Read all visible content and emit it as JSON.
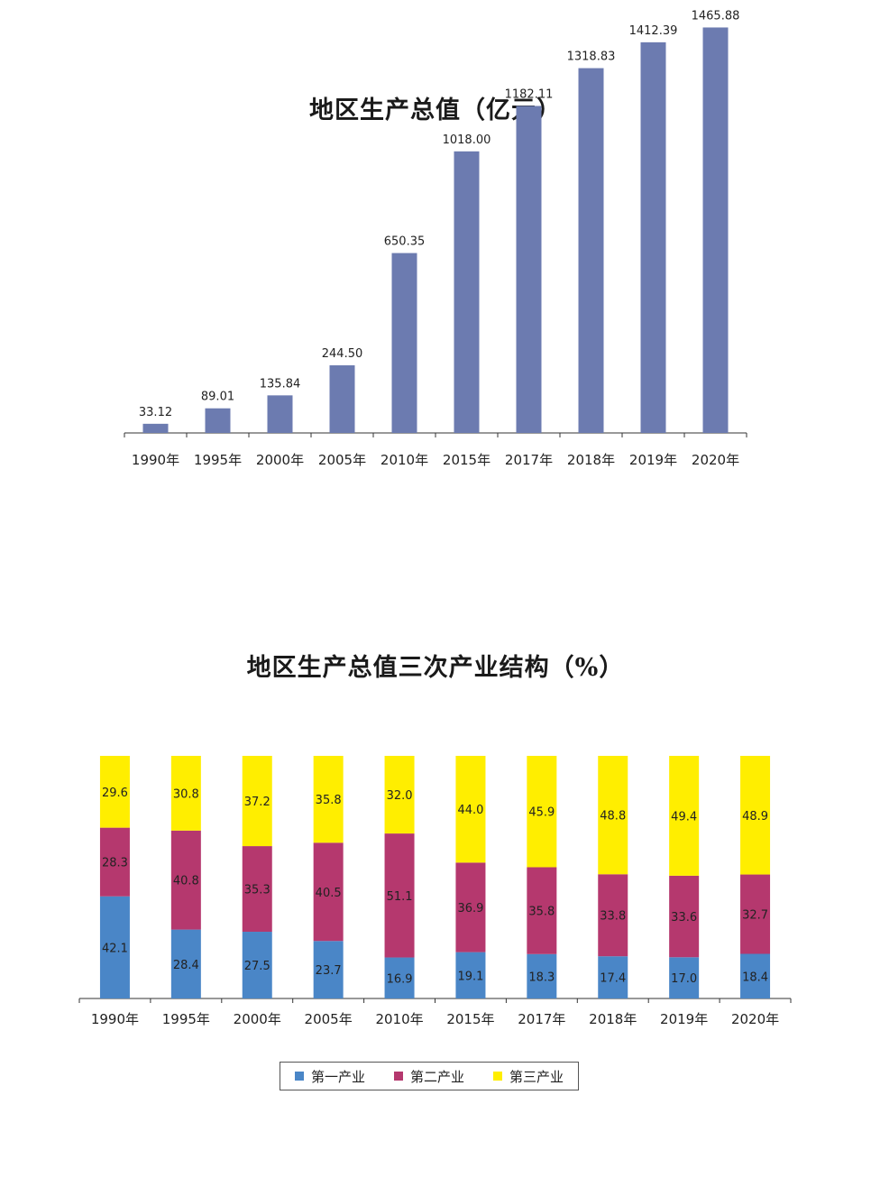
{
  "chart_data": [
    {
      "type": "bar",
      "title": "地区生产总值（亿元）",
      "categories": [
        "1990年",
        "1995年",
        "2000年",
        "2005年",
        "2010年",
        "2015年",
        "2017年",
        "2018年",
        "2019年",
        "2020年"
      ],
      "values": [
        33.12,
        89.01,
        135.84,
        244.5,
        650.35,
        1018.0,
        1182.11,
        1318.83,
        1412.39,
        1465.88
      ],
      "value_labels": [
        "33.12",
        "89.01",
        "135.84",
        "244.50",
        "650.35",
        "1018.00",
        "1182.11",
        "1318.83",
        "1412.39",
        "1465.88"
      ],
      "ylim": [
        0,
        1500
      ],
      "grid": false,
      "color": "#6c7bb0"
    },
    {
      "type": "bar",
      "stacked": true,
      "title": "地区生产总值三次产业结构（%）",
      "categories": [
        "1990年",
        "1995年",
        "2000年",
        "2005年",
        "2010年",
        "2015年",
        "2017年",
        "2018年",
        "2019年",
        "2020年"
      ],
      "series": [
        {
          "name": "第一产业",
          "color": "#4a86c7",
          "values": [
            42.1,
            28.4,
            27.5,
            23.7,
            16.9,
            19.1,
            18.3,
            17.4,
            17.0,
            18.4
          ]
        },
        {
          "name": "第二产业",
          "color": "#b5386e",
          "values": [
            28.3,
            40.8,
            35.3,
            40.5,
            51.1,
            36.9,
            35.8,
            33.8,
            33.6,
            32.7
          ]
        },
        {
          "name": "第三产业",
          "color": "#ffee00",
          "values": [
            29.6,
            30.8,
            37.2,
            35.8,
            32.0,
            44.0,
            45.9,
            48.8,
            49.4,
            48.9
          ]
        }
      ],
      "ylim": [
        0,
        100
      ],
      "grid": false,
      "legend": "bottom"
    }
  ]
}
